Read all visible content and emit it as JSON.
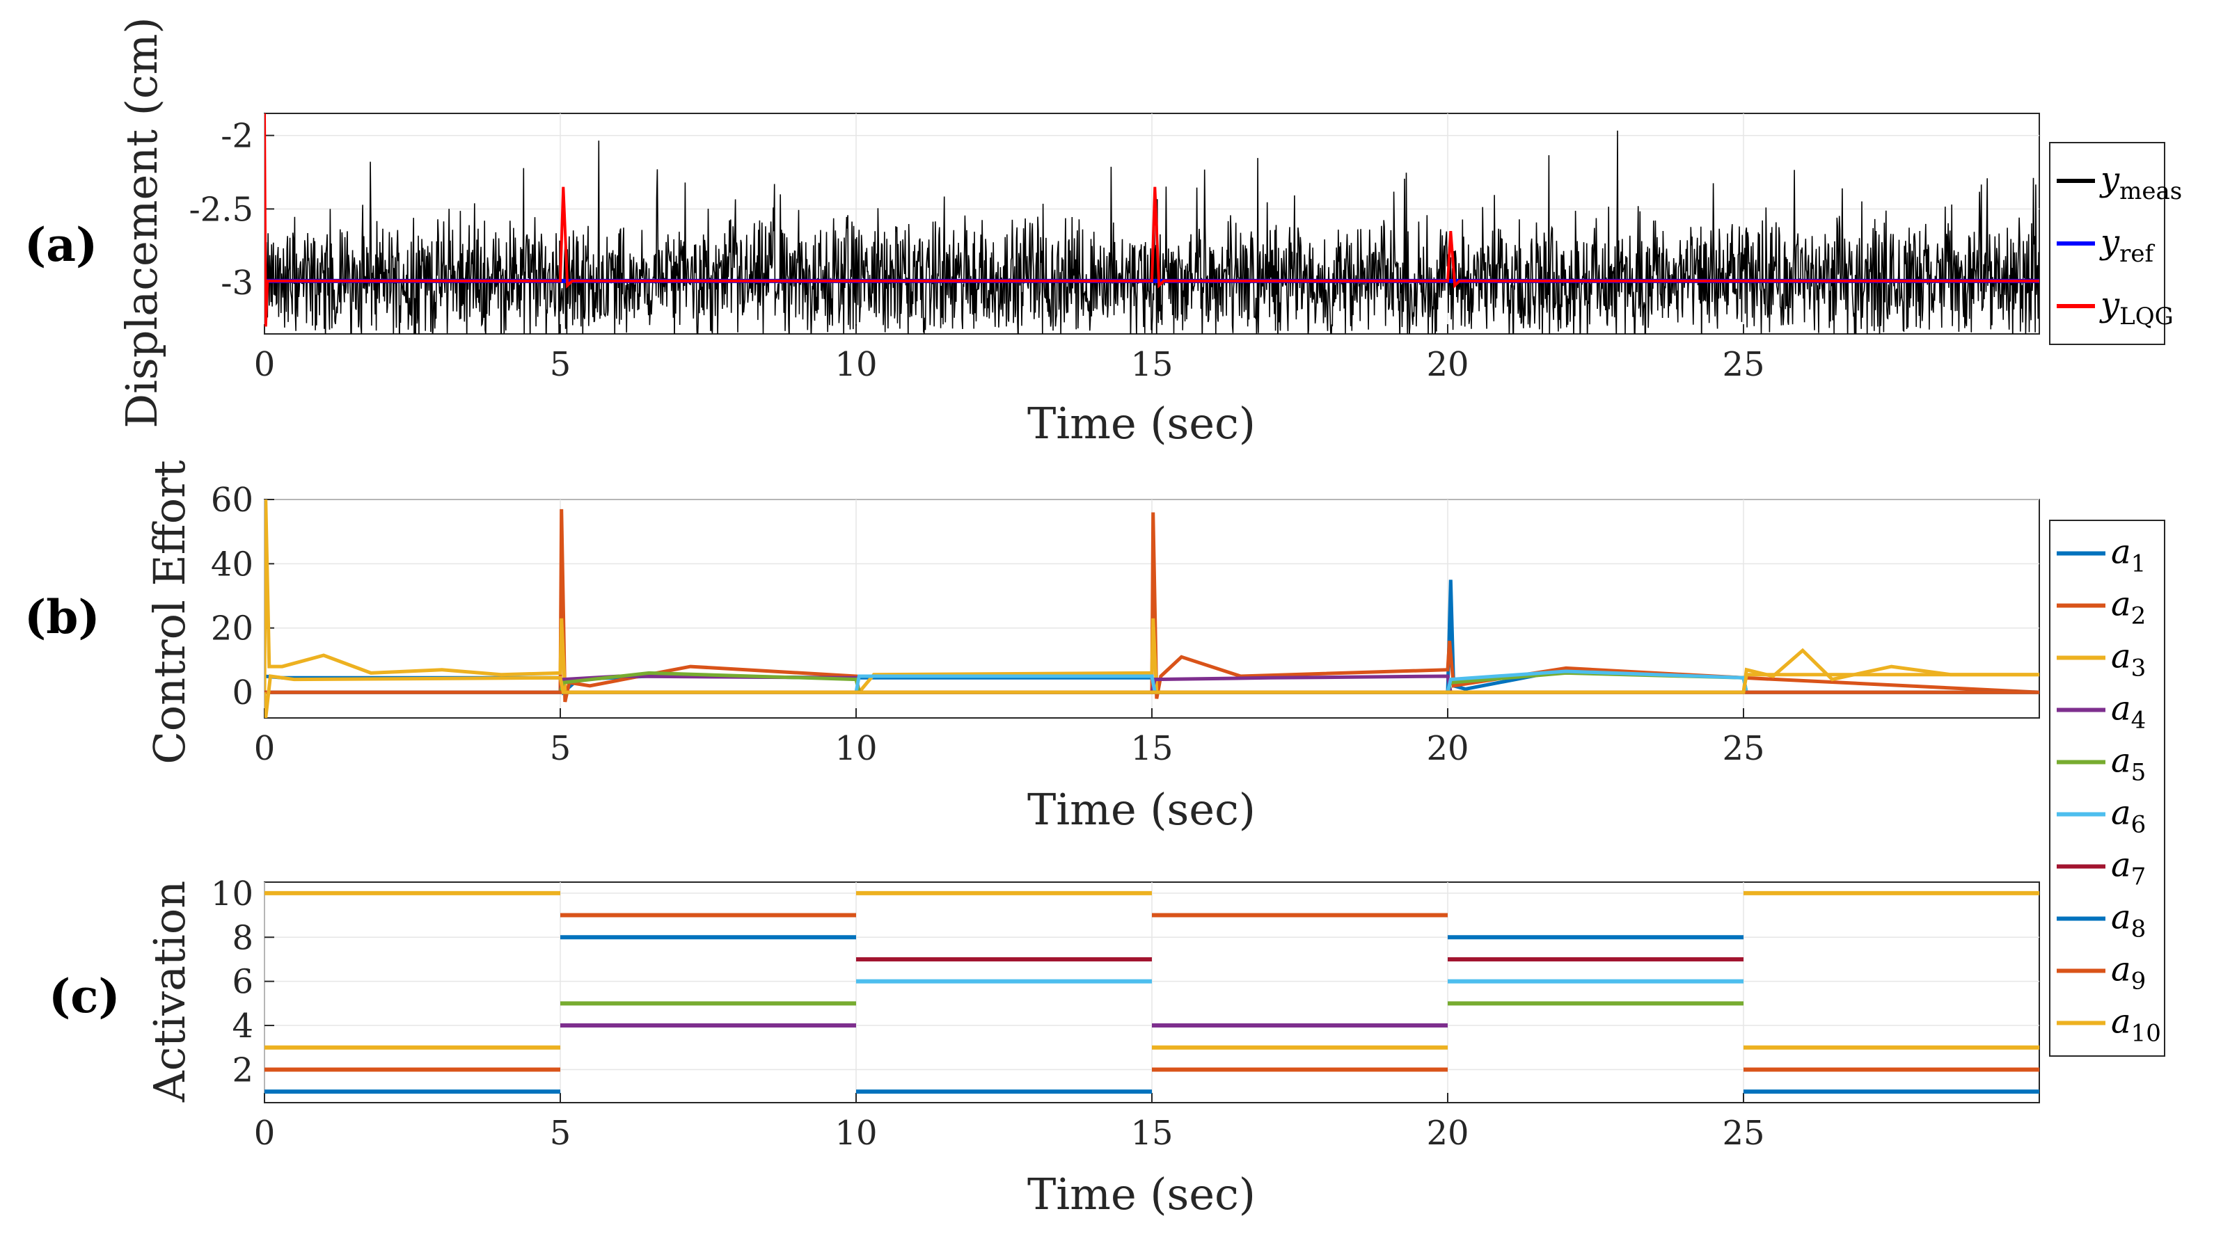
{
  "chart_data": [
    {
      "id": "a",
      "type": "line",
      "panel_label": "(a)",
      "xlabel": "Time (sec)",
      "ylabel": "Displacement (cm)",
      "xlim": [
        0,
        30
      ],
      "ylim": [
        -3.35,
        -1.85
      ],
      "xticks": [
        "0",
        "5",
        "10",
        "15",
        "20",
        "25"
      ],
      "yticks": [
        "-2",
        "-2.5",
        "-3"
      ],
      "ytick_values": [
        -2,
        -2.5,
        -3
      ],
      "colors": {
        "meas": "#000000",
        "ref": "#0000ff",
        "lqg": "#ff0000"
      },
      "legend": [
        {
          "name": "y",
          "sub": "meas",
          "color": "#000000"
        },
        {
          "name": "y",
          "sub": "ref",
          "color": "#0000ff"
        },
        {
          "name": "y",
          "sub": "LQG",
          "color": "#ff0000"
        }
      ],
      "series": [
        {
          "name": "y_meas",
          "description": "noisy measurement around -3.0 with amplitude ~0.5",
          "baseline": -2.99
        },
        {
          "name": "y_ref",
          "x": [
            0,
            30
          ],
          "values": [
            -2.99,
            -2.99
          ]
        },
        {
          "name": "y_LQG",
          "x": [
            0,
            0.02,
            0.05,
            0.15,
            5.0,
            5.05,
            5.12,
            5.2,
            15.0,
            15.05,
            15.12,
            15.2,
            20.0,
            20.05,
            20.12,
            20.2,
            30
          ],
          "values": [
            -1.85,
            -3.3,
            -2.99,
            -2.99,
            -2.99,
            -2.35,
            -3.02,
            -2.99,
            -2.99,
            -2.35,
            -3.02,
            -2.99,
            -2.99,
            -2.65,
            -3.02,
            -2.99,
            -2.99
          ]
        }
      ]
    },
    {
      "id": "b",
      "type": "line",
      "panel_label": "(b)",
      "xlabel": "Time (sec)",
      "ylabel": "Control Effort",
      "xlim": [
        0,
        30
      ],
      "ylim": [
        -8,
        60
      ],
      "xticks": [
        "0",
        "5",
        "10",
        "15",
        "20",
        "25"
      ],
      "yticks": [
        "0",
        "20",
        "40",
        "60"
      ],
      "ytick_values": [
        0,
        20,
        40,
        60
      ],
      "legend": [
        {
          "name": "a",
          "sub": "1",
          "color": "#0072BD"
        },
        {
          "name": "a",
          "sub": "2",
          "color": "#D95319"
        },
        {
          "name": "a",
          "sub": "3",
          "color": "#EDB120"
        },
        {
          "name": "a",
          "sub": "4",
          "color": "#7E2F8E"
        },
        {
          "name": "a",
          "sub": "5",
          "color": "#77AC30"
        },
        {
          "name": "a",
          "sub": "6",
          "color": "#4DBEEE"
        },
        {
          "name": "a",
          "sub": "7",
          "color": "#A2142F"
        },
        {
          "name": "a",
          "sub": "8",
          "color": "#0072BD"
        },
        {
          "name": "a",
          "sub": "9",
          "color": "#D95319"
        },
        {
          "name": "a",
          "sub": "10",
          "color": "#EDB120"
        }
      ],
      "series": [
        {
          "name": "a1",
          "color": "#0072BD",
          "x": [
            0,
            0.3,
            5,
            5.05,
            5.3,
            6.5,
            10,
            10.05,
            15,
            15.05,
            20,
            20.05,
            20.1,
            20.3,
            22,
            25,
            25.05,
            30
          ],
          "values": [
            5,
            4.5,
            4.5,
            0,
            4,
            5,
            4.5,
            4.5,
            4.5,
            0,
            0,
            35,
            2,
            1,
            7,
            4.5,
            0,
            0
          ]
        },
        {
          "name": "a2",
          "color": "#D95319",
          "x": [
            0,
            5,
            5.02,
            5.08,
            5.15,
            5.5,
            7.2,
            10,
            10.05,
            15,
            15.02,
            15.08,
            15.15,
            15.5,
            16.5,
            20,
            20.03,
            20.1,
            22,
            25,
            30
          ],
          "values": [
            0,
            0,
            57,
            -3,
            3,
            2,
            8,
            5,
            0,
            0,
            56,
            -2,
            5,
            11,
            5,
            7,
            16,
            2,
            7.5,
            4.5,
            0
          ]
        },
        {
          "name": "a3",
          "color": "#EDB120",
          "x": [
            0,
            0.02,
            0.08,
            0.3,
            1.0,
            1.8,
            3.0,
            4.0,
            5,
            5.02,
            5.08,
            5.2,
            10,
            10.05,
            10.3,
            15,
            15.02,
            15.08,
            15.2,
            25,
            25.05,
            25.5,
            26,
            26.5,
            27.5,
            28.5,
            30
          ],
          "values": [
            0,
            60,
            8,
            8,
            11.5,
            6,
            7,
            5.5,
            6,
            23,
            0,
            0,
            0,
            0,
            5.5,
            6,
            23,
            0,
            0,
            0,
            7,
            5,
            13,
            4,
            8,
            5.5,
            5.5
          ]
        },
        {
          "name": "a4",
          "color": "#7E2F8E",
          "x": [
            0,
            5,
            5.05,
            6,
            10,
            10.05,
            15,
            15.05,
            17,
            20,
            20.05,
            30
          ],
          "values": [
            0,
            0,
            4,
            5,
            4.5,
            0,
            0,
            4,
            4.5,
            5,
            0,
            0
          ]
        },
        {
          "name": "a5",
          "color": "#77AC30",
          "x": [
            0,
            5,
            5.05,
            6.5,
            10,
            10.05,
            20,
            20.05,
            22,
            25,
            25.05,
            30
          ],
          "values": [
            0,
            0,
            3,
            6,
            4,
            0,
            0,
            3,
            6,
            4.5,
            0,
            0
          ]
        },
        {
          "name": "a6",
          "color": "#4DBEEE",
          "x": [
            0,
            10,
            10.05,
            15,
            15.05,
            20,
            20.05,
            22,
            25,
            25.05,
            30
          ],
          "values": [
            0,
            0,
            5,
            5,
            0,
            0,
            4,
            6.5,
            4.5,
            0,
            0
          ]
        },
        {
          "name": "a7",
          "color": "#A2142F",
          "x": [
            0,
            30
          ],
          "values": [
            0,
            0
          ]
        },
        {
          "name": "a8",
          "color": "#0072BD",
          "x": [
            0,
            30
          ],
          "values": [
            0,
            0
          ]
        },
        {
          "name": "a9",
          "color": "#D95319",
          "x": [
            0,
            30
          ],
          "values": [
            0,
            0
          ]
        },
        {
          "name": "a10",
          "color": "#EDB120",
          "x": [
            0,
            0.02,
            0.1,
            0.5,
            5,
            5.05,
            10,
            10.05,
            15,
            15.05,
            25,
            25.05,
            30
          ],
          "values": [
            0,
            -8,
            5,
            4,
            4.5,
            0,
            0,
            0,
            0,
            0,
            0,
            5.5,
            5.5
          ]
        }
      ]
    },
    {
      "id": "c",
      "type": "line",
      "panel_label": "(c)",
      "xlabel": "Time (sec)",
      "ylabel": "Activation",
      "xlim": [
        0,
        30
      ],
      "ylim": [
        0.5,
        10.5
      ],
      "xticks": [
        "0",
        "5",
        "10",
        "15",
        "20",
        "25"
      ],
      "yticks": [
        "2",
        "4",
        "6",
        "8",
        "10"
      ],
      "ytick_values": [
        2,
        4,
        6,
        8,
        10
      ],
      "segments": [
        {
          "x": [
            0,
            5
          ],
          "y": 10,
          "color": "#EDB120"
        },
        {
          "x": [
            0,
            5
          ],
          "y": 3,
          "color": "#EDB120"
        },
        {
          "x": [
            0,
            5
          ],
          "y": 2,
          "color": "#D95319"
        },
        {
          "x": [
            0,
            5
          ],
          "y": 1,
          "color": "#0072BD"
        },
        {
          "x": [
            5,
            10
          ],
          "y": 9,
          "color": "#D95319"
        },
        {
          "x": [
            5,
            10
          ],
          "y": 8,
          "color": "#0072BD"
        },
        {
          "x": [
            5,
            10
          ],
          "y": 5,
          "color": "#77AC30"
        },
        {
          "x": [
            5,
            10
          ],
          "y": 4,
          "color": "#7E2F8E"
        },
        {
          "x": [
            10,
            15
          ],
          "y": 10,
          "color": "#EDB120"
        },
        {
          "x": [
            10,
            15
          ],
          "y": 7,
          "color": "#A2142F"
        },
        {
          "x": [
            10,
            15
          ],
          "y": 6,
          "color": "#4DBEEE"
        },
        {
          "x": [
            10,
            15
          ],
          "y": 1,
          "color": "#0072BD"
        },
        {
          "x": [
            15,
            20
          ],
          "y": 9,
          "color": "#D95319"
        },
        {
          "x": [
            15,
            20
          ],
          "y": 4,
          "color": "#7E2F8E"
        },
        {
          "x": [
            15,
            20
          ],
          "y": 3,
          "color": "#EDB120"
        },
        {
          "x": [
            15,
            20
          ],
          "y": 2,
          "color": "#D95319"
        },
        {
          "x": [
            20,
            25
          ],
          "y": 8,
          "color": "#0072BD"
        },
        {
          "x": [
            20,
            25
          ],
          "y": 7,
          "color": "#A2142F"
        },
        {
          "x": [
            20,
            25
          ],
          "y": 6,
          "color": "#4DBEEE"
        },
        {
          "x": [
            20,
            25
          ],
          "y": 5,
          "color": "#77AC30"
        },
        {
          "x": [
            25,
            30
          ],
          "y": 10,
          "color": "#EDB120"
        },
        {
          "x": [
            25,
            30
          ],
          "y": 3,
          "color": "#EDB120"
        },
        {
          "x": [
            25,
            30
          ],
          "y": 2,
          "color": "#D95319"
        },
        {
          "x": [
            25,
            30
          ],
          "y": 1,
          "color": "#0072BD"
        }
      ]
    }
  ]
}
